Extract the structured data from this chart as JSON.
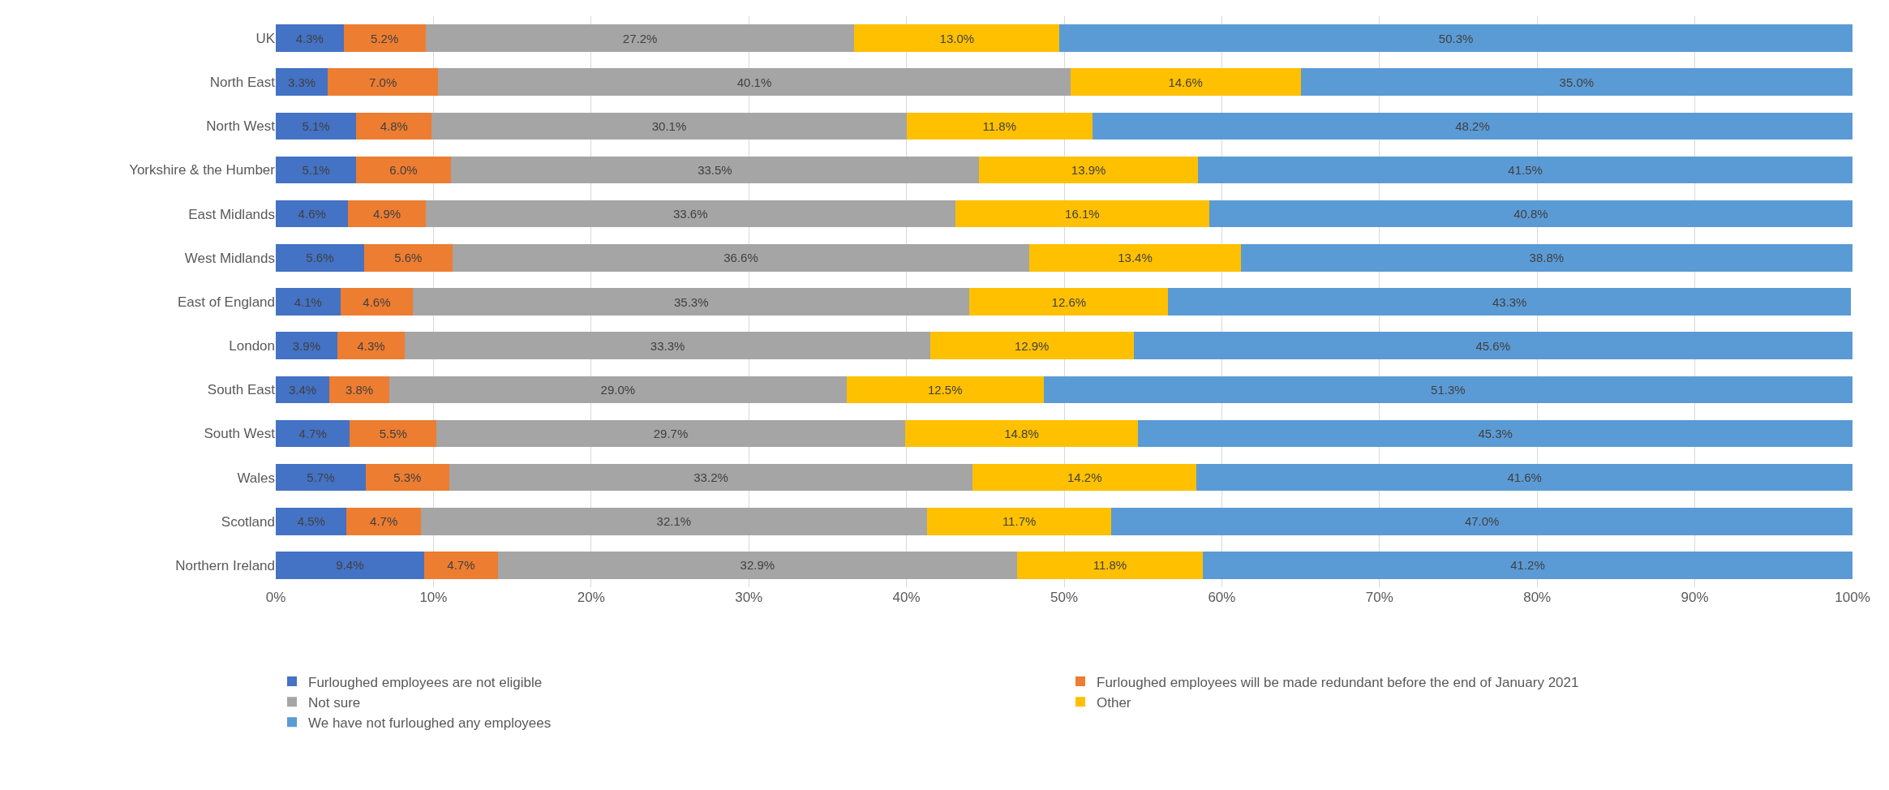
{
  "chart_data": {
    "type": "bar",
    "orientation": "horizontal",
    "stacked": true,
    "categories": [
      "UK",
      "North East",
      "North West",
      "Yorkshire & the Humber",
      "East Midlands",
      "West Midlands",
      "East of England",
      "London",
      "South East",
      "South West",
      "Wales",
      "Scotland",
      "Northern Ireland"
    ],
    "series": [
      {
        "name": "Furloughed employees are not eligible",
        "color": "#4472c4",
        "values": [
          4.3,
          3.3,
          5.1,
          5.1,
          4.6,
          5.6,
          4.1,
          3.9,
          3.4,
          4.7,
          5.7,
          4.5,
          9.4
        ],
        "value_labels": [
          "4.3%",
          "3.3%",
          "5.1%",
          "5.1%",
          "4.6%",
          "5.6%",
          "4.1%",
          "3.9%",
          "3.4%",
          "4.7%",
          "5.7%",
          "4.5%",
          "9.4%"
        ]
      },
      {
        "name": "Furloughed employees will be made redundant before the end of January 2021",
        "color": "#ed7d31",
        "values": [
          5.2,
          7.0,
          4.8,
          6.0,
          4.9,
          5.6,
          4.6,
          4.3,
          3.8,
          5.5,
          5.3,
          4.7,
          4.7
        ],
        "value_labels": [
          "5.2%",
          "7.0%",
          "4.8%",
          "6.0%",
          "4.9%",
          "5.6%",
          "4.6%",
          "4.3%",
          "3.8%",
          "5.5%",
          "5.3%",
          "4.7%",
          "4.7%"
        ]
      },
      {
        "name": "Not sure",
        "color": "#a5a5a5",
        "values": [
          27.2,
          40.1,
          30.1,
          33.5,
          33.6,
          36.6,
          35.3,
          33.3,
          29.0,
          29.7,
          33.2,
          32.1,
          32.9
        ],
        "value_labels": [
          "27.2%",
          "40.1%",
          "30.1%",
          "33.5%",
          "33.6%",
          "36.6%",
          "35.3%",
          "33.3%",
          "29.0%",
          "29.7%",
          "33.2%",
          "32.1%",
          "32.9%"
        ]
      },
      {
        "name": "Other",
        "color": "#ffc000",
        "values": [
          13.0,
          14.6,
          11.8,
          13.9,
          16.1,
          13.4,
          12.6,
          12.9,
          12.5,
          14.8,
          14.2,
          11.7,
          11.8
        ],
        "value_labels": [
          "13.0%",
          "14.6%",
          "11.8%",
          "13.9%",
          "16.1%",
          "13.4%",
          "12.6%",
          "12.9%",
          "12.5%",
          "14.8%",
          "14.2%",
          "11.7%",
          "11.8%"
        ]
      },
      {
        "name": "We have not furloughed any employees",
        "color": "#5b9bd5",
        "values": [
          50.3,
          35.0,
          48.2,
          41.5,
          40.8,
          38.8,
          43.3,
          45.6,
          51.3,
          45.3,
          41.6,
          47.0,
          41.2
        ],
        "value_labels": [
          "50.3%",
          "35.0%",
          "48.2%",
          "41.5%",
          "40.8%",
          "38.8%",
          "43.3%",
          "45.6%",
          "51.3%",
          "45.3%",
          "41.6%",
          "47.0%",
          "41.2%"
        ]
      }
    ],
    "xlim": [
      0,
      100
    ],
    "xticks": [
      {
        "value": 0,
        "label": "0%"
      },
      {
        "value": 10,
        "label": "10%"
      },
      {
        "value": 20,
        "label": "20%"
      },
      {
        "value": 30,
        "label": "30%"
      },
      {
        "value": 40,
        "label": "40%"
      },
      {
        "value": 50,
        "label": "50%"
      },
      {
        "value": 60,
        "label": "60%"
      },
      {
        "value": 70,
        "label": "70%"
      },
      {
        "value": 80,
        "label": "80%"
      },
      {
        "value": 90,
        "label": "90%"
      },
      {
        "value": 100,
        "label": "100%"
      }
    ],
    "grid": "x",
    "legend": "bottom"
  }
}
